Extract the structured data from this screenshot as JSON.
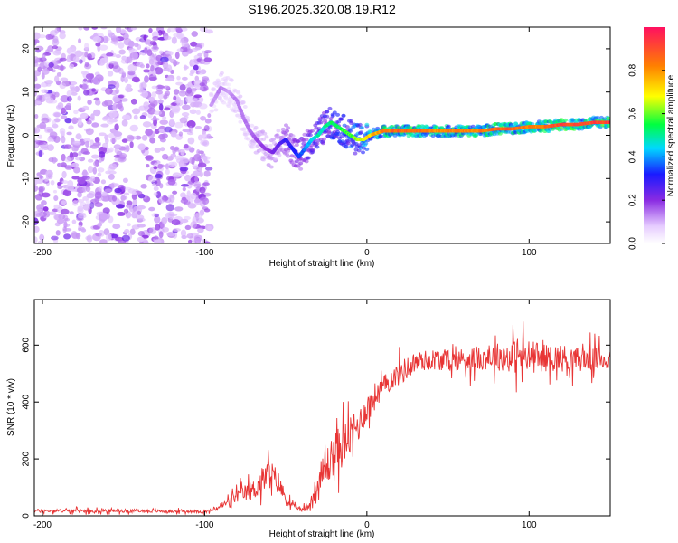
{
  "title": "S196.2025.320.08.19.R12",
  "chart_data": [
    {
      "type": "heatmap",
      "title": "S196.2025.320.08.19.R12",
      "xlabel": "Height of straight line (km)",
      "ylabel": "Frequency (Hz)",
      "xlim": [
        -205,
        150
      ],
      "ylim": [
        -25,
        25
      ],
      "x_ticks": [
        -200,
        -100,
        0,
        100
      ],
      "y_ticks": [
        -20,
        -10,
        0,
        10,
        20
      ],
      "colorbar": {
        "label": "Normalized spectral amplitude",
        "range": [
          0,
          1
        ],
        "ticks": [
          0,
          0.2,
          0.4,
          0.6,
          0.8
        ],
        "tick_labels": [
          "0.0",
          "0.2",
          "0.4",
          "0.6",
          "0.8"
        ]
      },
      "noise_region": {
        "x_range": [
          -205,
          -97
        ],
        "freq_range": [
          -25,
          25
        ],
        "typical_amplitude": 0.08
      },
      "ridge": {
        "description": "Dominant frequency track",
        "x": [
          -96,
          -90,
          -85,
          -80,
          -76,
          -72,
          -68,
          -63,
          -58,
          -54,
          -50,
          -46,
          -42,
          -38,
          -34,
          -30,
          -26,
          -22,
          -18,
          -14,
          -10,
          -6,
          -2,
          2,
          10,
          20,
          30,
          40,
          50,
          60,
          70,
          80,
          90,
          100,
          105,
          110,
          120,
          130,
          140,
          150
        ],
        "frequency": [
          7,
          11,
          10,
          8,
          4,
          1,
          -1,
          -3,
          -4,
          -2,
          -1,
          -3,
          -5,
          -3,
          -1,
          0,
          2,
          3,
          2,
          1,
          0,
          -1,
          -1,
          0,
          1,
          1,
          1,
          1,
          1,
          1,
          1,
          1.5,
          1.5,
          2,
          2,
          2,
          2.5,
          2.5,
          3,
          3
        ],
        "amplitude": [
          0.12,
          0.15,
          0.12,
          0.15,
          0.15,
          0.15,
          0.18,
          0.2,
          0.22,
          0.25,
          0.3,
          0.32,
          0.35,
          0.4,
          0.45,
          0.5,
          0.5,
          0.55,
          0.55,
          0.6,
          0.6,
          0.65,
          0.7,
          0.75,
          0.85,
          0.9,
          0.9,
          0.85,
          0.85,
          0.85,
          0.85,
          0.9,
          0.9,
          0.85,
          0.85,
          0.9,
          0.95,
          0.95,
          0.95,
          0.95
        ]
      }
    },
    {
      "type": "line",
      "xlabel": "Height of straight line (km)",
      "ylabel": "SNR (10 * v/v)",
      "xlim": [
        -205,
        150
      ],
      "ylim": [
        0,
        760
      ],
      "x_ticks": [
        -200,
        -100,
        0,
        100
      ],
      "y_ticks": [
        0,
        200,
        400,
        600
      ],
      "series": [
        {
          "name": "SNR",
          "color": "#e83535",
          "envelope_x": [
            -205,
            -150,
            -100,
            -95,
            -90,
            -85,
            -80,
            -75,
            -70,
            -65,
            -60,
            -55,
            -50,
            -45,
            -40,
            -35,
            -30,
            -25,
            -20,
            -15,
            -10,
            -5,
            0,
            5,
            10,
            15,
            20,
            25,
            30,
            40,
            50,
            60,
            70,
            80,
            90,
            100,
            110,
            120,
            130,
            140,
            150
          ],
          "envelope_mean": [
            18,
            18,
            15,
            20,
            35,
            50,
            70,
            80,
            90,
            120,
            150,
            120,
            60,
            30,
            20,
            40,
            110,
            170,
            220,
            250,
            280,
            320,
            380,
            420,
            450,
            480,
            500,
            520,
            540,
            550,
            545,
            550,
            555,
            560,
            560,
            560,
            555,
            555,
            550,
            550,
            550
          ],
          "envelope_amp": [
            10,
            10,
            8,
            10,
            20,
            25,
            40,
            50,
            60,
            80,
            90,
            70,
            40,
            15,
            10,
            40,
            100,
            120,
            120,
            130,
            110,
            90,
            80,
            80,
            70,
            60,
            70,
            70,
            60,
            60,
            60,
            70,
            70,
            80,
            100,
            100,
            80,
            80,
            70,
            70,
            70
          ]
        }
      ]
    }
  ]
}
